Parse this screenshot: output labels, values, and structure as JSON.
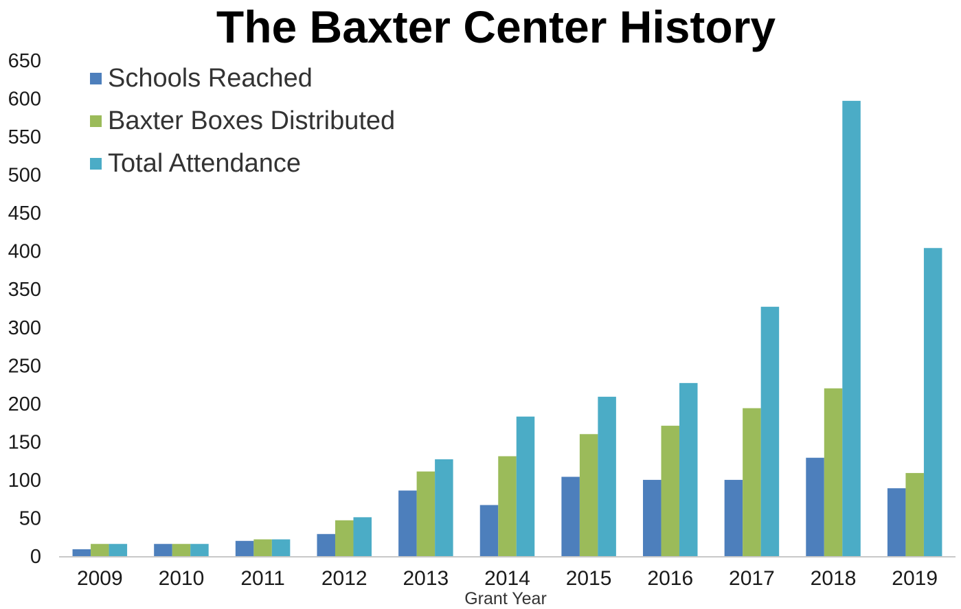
{
  "chart_data": {
    "type": "bar",
    "title": "The Baxter Center History",
    "xlabel": "Grant Year",
    "ylabel": "",
    "ylim": [
      0,
      650
    ],
    "yticks": [
      "0",
      "50",
      "100",
      "150",
      "200",
      "250",
      "300",
      "350",
      "400",
      "450",
      "500",
      "550",
      "600",
      "650"
    ],
    "grid": false,
    "legend_position": "top-left",
    "categories": [
      "2009",
      "2010",
      "2011",
      "2012",
      "2013",
      "2014",
      "2015",
      "2016",
      "2017",
      "2018",
      "2019"
    ],
    "series": [
      {
        "name": "Schools Reached",
        "color": "#4d7fbc",
        "values": [
          9,
          16,
          20,
          29,
          86,
          67,
          104,
          100,
          100,
          129,
          89
        ]
      },
      {
        "name": "Baxter Boxes Distributed",
        "color": "#9bbb5a",
        "values": [
          16,
          16,
          22,
          47,
          111,
          131,
          160,
          171,
          194,
          220,
          109
        ]
      },
      {
        "name": "Total Attendance",
        "color": "#4bacc6",
        "values": [
          16,
          16,
          22,
          51,
          127,
          183,
          209,
          227,
          327,
          597,
          404
        ]
      }
    ]
  }
}
